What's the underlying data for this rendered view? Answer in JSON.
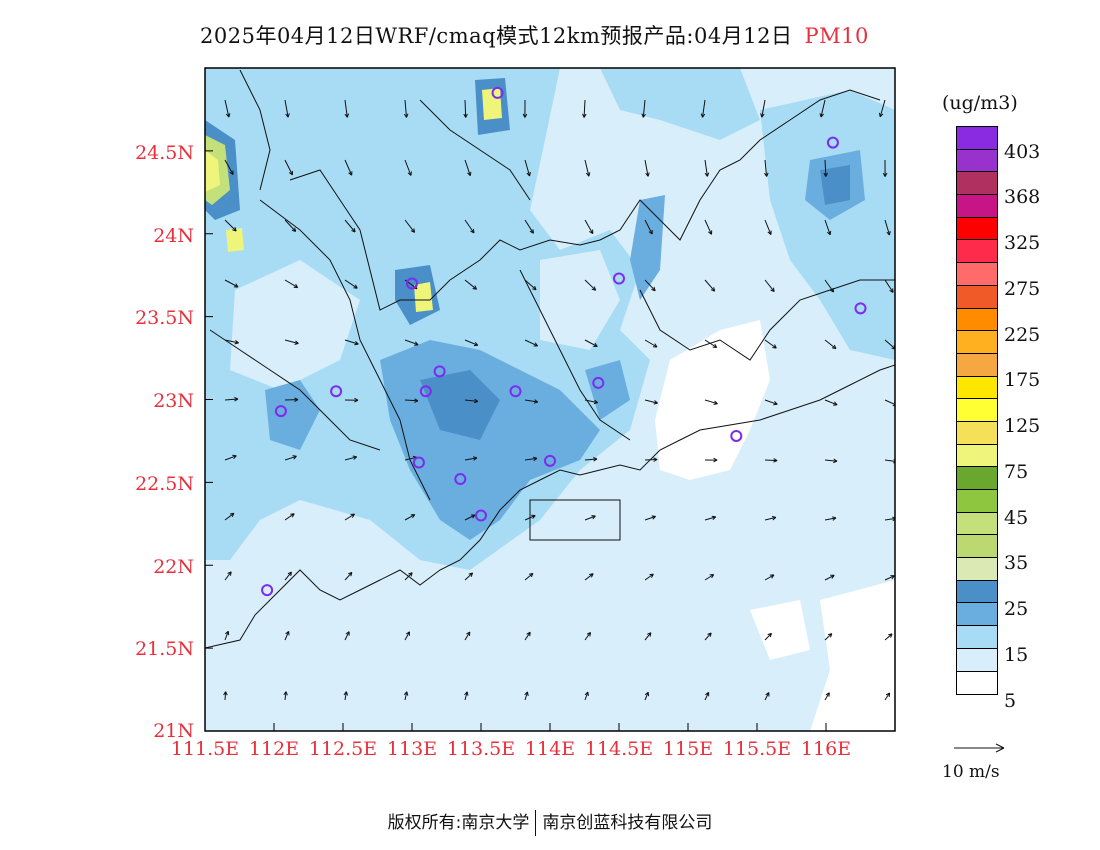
{
  "title": {
    "main": "2025年04月12日WRF/cmaq模式12km预报产品:04月12日",
    "pollutant": "PM10"
  },
  "axes": {
    "lat_ticks": [
      "24.5N",
      "24N",
      "23.5N",
      "23N",
      "22.5N",
      "22N",
      "21.5N",
      "21N"
    ],
    "lon_ticks": [
      "111.5E",
      "112E",
      "112.5E",
      "113E",
      "113.5E",
      "114E",
      "114.5E",
      "115E",
      "115.5E",
      "116E"
    ]
  },
  "legend": {
    "unit": "(ug/m3)",
    "labels": [
      "403",
      "368",
      "325",
      "275",
      "225",
      "175",
      "125",
      "75",
      "45",
      "35",
      "25",
      "15",
      "5"
    ],
    "colors": [
      "#8a2be2",
      "#9932cc",
      "#b03060",
      "#c71585",
      "#ff0000",
      "#ff2b4a",
      "#ff6a6a",
      "#f05a28",
      "#ff8c00",
      "#ffb020",
      "#f5a742",
      "#ffe600",
      "#ffff33",
      "#f5e05a",
      "#eef57a",
      "#6aa72f",
      "#8ec63f",
      "#c3e07a",
      "#bcd870",
      "#dbe9b5",
      "#4a8fc7",
      "#6aaee0",
      "#a8dcf5",
      "#d8eefa",
      "#ffffff"
    ],
    "reference_vector": "10 m/s"
  },
  "footer": {
    "left": "版权所有:南京大学",
    "right": "南京创蓝科技有限公司"
  },
  "station_markers": [
    {
      "lon": 113.62,
      "lat": 24.85
    },
    {
      "lon": 116.05,
      "lat": 24.55
    },
    {
      "lon": 113.0,
      "lat": 23.7
    },
    {
      "lon": 114.5,
      "lat": 23.73
    },
    {
      "lon": 116.25,
      "lat": 23.55
    },
    {
      "lon": 112.45,
      "lat": 23.05
    },
    {
      "lon": 113.1,
      "lat": 23.05
    },
    {
      "lon": 113.2,
      "lat": 23.17
    },
    {
      "lon": 113.75,
      "lat": 23.05
    },
    {
      "lon": 114.35,
      "lat": 23.1
    },
    {
      "lon": 112.05,
      "lat": 22.93
    },
    {
      "lon": 115.35,
      "lat": 22.78
    },
    {
      "lon": 113.05,
      "lat": 22.62
    },
    {
      "lon": 113.35,
      "lat": 22.52
    },
    {
      "lon": 114.0,
      "lat": 22.63
    },
    {
      "lon": 113.5,
      "lat": 22.3
    },
    {
      "lon": 111.95,
      "lat": 21.85
    }
  ]
}
